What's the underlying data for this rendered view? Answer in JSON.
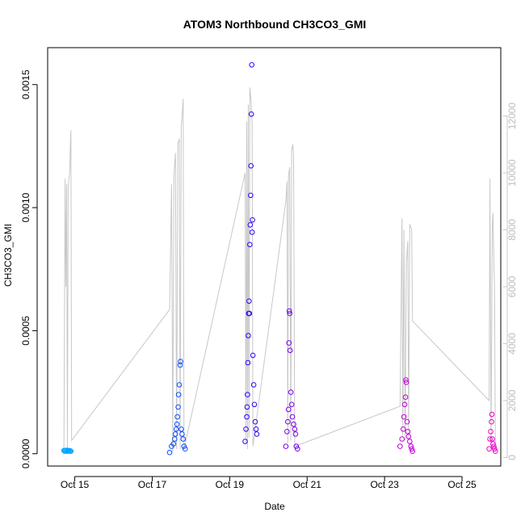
{
  "chart_data": {
    "type": "scatter",
    "title": "ATOM3 Northbound CH3CO3_GMI",
    "xlabel": "Date",
    "ylabel": "CH3CO3_GMI",
    "x_ticks": [
      "Oct 15",
      "Oct 17",
      "Oct 19",
      "Oct 21",
      "Oct 23",
      "Oct 25"
    ],
    "x_tick_days": [
      15,
      17,
      19,
      21,
      23,
      25
    ],
    "xlim_days": [
      14.3,
      26.0
    ],
    "y_ticks": [
      0.0,
      0.0005,
      0.001,
      0.0015
    ],
    "y_tick_labels": [
      "0.0000",
      "0.0005",
      "0.0010",
      "0.0015"
    ],
    "ylim": [
      -5e-05,
      0.00165
    ],
    "y2_ticks": [
      0,
      2000,
      4000,
      6000,
      8000,
      10000,
      12000
    ],
    "y2_tick_labels": [
      "0",
      "2000",
      "4000",
      "6000",
      "8000",
      "10000",
      "12000"
    ],
    "y2lim": [
      -300,
      14400
    ],
    "y2_color": "#c8c8c8",
    "grid": false,
    "altitude_series": {
      "color": "#c8c8c8",
      "points": [
        [
          14.72,
          100
        ],
        [
          14.75,
          9800
        ],
        [
          14.77,
          6000
        ],
        [
          14.79,
          9600
        ],
        [
          14.81,
          300
        ],
        [
          14.83,
          9500
        ],
        [
          14.85,
          9800
        ],
        [
          14.87,
          10000
        ],
        [
          14.89,
          11200
        ],
        [
          14.9,
          11500
        ],
        [
          14.92,
          600
        ],
        [
          17.45,
          5200
        ],
        [
          17.5,
          9600
        ],
        [
          17.53,
          200
        ],
        [
          17.56,
          9900
        ],
        [
          17.6,
          10700
        ],
        [
          17.63,
          300
        ],
        [
          17.66,
          11000
        ],
        [
          17.7,
          11200
        ],
        [
          17.72,
          300
        ],
        [
          17.75,
          11600
        ],
        [
          17.78,
          12200
        ],
        [
          17.8,
          12600
        ],
        [
          17.82,
          300
        ],
        [
          19.4,
          10000
        ],
        [
          19.42,
          500
        ],
        [
          19.44,
          11800
        ],
        [
          19.46,
          300
        ],
        [
          19.48,
          12400
        ],
        [
          19.5,
          700
        ],
        [
          19.52,
          13000
        ],
        [
          19.55,
          12600
        ],
        [
          19.58,
          11700
        ],
        [
          19.6,
          400
        ],
        [
          20.45,
          9000
        ],
        [
          20.48,
          9700
        ],
        [
          20.5,
          500
        ],
        [
          20.52,
          9900
        ],
        [
          20.55,
          10200
        ],
        [
          20.58,
          600
        ],
        [
          20.6,
          10800
        ],
        [
          20.63,
          11000
        ],
        [
          20.65,
          10600
        ],
        [
          20.68,
          500
        ],
        [
          20.7,
          400
        ],
        [
          23.4,
          1800
        ],
        [
          23.45,
          8400
        ],
        [
          23.47,
          700
        ],
        [
          23.5,
          8000
        ],
        [
          23.53,
          600
        ],
        [
          23.56,
          6800
        ],
        [
          23.6,
          7600
        ],
        [
          23.62,
          700
        ],
        [
          23.65,
          8200
        ],
        [
          23.7,
          8000
        ],
        [
          23.72,
          4800
        ],
        [
          25.7,
          2000
        ],
        [
          25.72,
          9800
        ],
        [
          25.75,
          300
        ],
        [
          25.78,
          8200
        ],
        [
          25.8,
          8600
        ],
        [
          25.82,
          7000
        ],
        [
          25.84,
          6000
        ],
        [
          25.86,
          200
        ]
      ]
    },
    "series": [
      {
        "color": "#00a6ff",
        "points": [
          [
            14.72,
            1.3e-05
          ],
          [
            14.74,
            1.1e-05
          ],
          [
            14.76,
            1.2e-05
          ],
          [
            14.78,
            1.4e-05
          ],
          [
            14.8,
            1e-05
          ],
          [
            14.82,
            1.2e-05
          ],
          [
            14.84,
            1.3e-05
          ],
          [
            14.86,
            1.1e-05
          ],
          [
            14.88,
            1.2e-05
          ],
          [
            14.9,
            1e-05
          ]
        ]
      },
      {
        "color": "#0c4dff",
        "points": [
          [
            17.45,
            5e-06
          ],
          [
            17.5,
            3e-05
          ],
          [
            17.55,
            4e-05
          ],
          [
            17.58,
            6e-05
          ],
          [
            17.6,
            8e-05
          ],
          [
            17.62,
            0.0001
          ],
          [
            17.64,
            0.00012
          ],
          [
            17.65,
            0.00015
          ],
          [
            17.67,
            0.00019
          ],
          [
            17.68,
            0.00024
          ],
          [
            17.7,
            0.00028
          ],
          [
            17.72,
            0.00036
          ],
          [
            17.73,
            0.000375
          ],
          [
            17.75,
            0.0001
          ],
          [
            17.77,
            8e-05
          ],
          [
            17.8,
            6e-05
          ],
          [
            17.82,
            3e-05
          ],
          [
            17.85,
            2e-05
          ]
        ]
      },
      {
        "color": "#3300ff",
        "points": [
          [
            19.4,
            5e-05
          ],
          [
            19.42,
            0.0001
          ],
          [
            19.44,
            0.00015
          ],
          [
            19.45,
            0.00019
          ],
          [
            19.46,
            0.00024
          ],
          [
            19.47,
            0.00037
          ],
          [
            19.48,
            0.00048
          ],
          [
            19.49,
            0.00057
          ],
          [
            19.5,
            0.00062
          ],
          [
            19.51,
            0.00057
          ],
          [
            19.52,
            0.00085
          ],
          [
            19.53,
            0.00093
          ],
          [
            19.54,
            0.00105
          ],
          [
            19.55,
            0.00117
          ],
          [
            19.56,
            0.00138
          ],
          [
            19.57,
            0.00158
          ],
          [
            19.58,
            0.0009
          ],
          [
            19.59,
            0.00095
          ],
          [
            19.6,
            0.0004
          ],
          [
            19.62,
            0.00028
          ],
          [
            19.64,
            0.0002
          ],
          [
            19.66,
            0.00013
          ],
          [
            19.68,
            0.0001
          ],
          [
            19.7,
            8e-05
          ]
        ]
      },
      {
        "color": "#7a00e6",
        "points": [
          [
            20.45,
            3e-05
          ],
          [
            20.48,
            9e-05
          ],
          [
            20.5,
            0.00013
          ],
          [
            20.52,
            0.00018
          ],
          [
            20.53,
            0.00045
          ],
          [
            20.54,
            0.00058
          ],
          [
            20.55,
            0.00057
          ],
          [
            20.56,
            0.00042
          ],
          [
            20.58,
            0.00025
          ],
          [
            20.6,
            0.0002
          ],
          [
            20.62,
            0.00015
          ],
          [
            20.65,
            0.00012
          ],
          [
            20.68,
            0.0001
          ],
          [
            20.7,
            8e-05
          ],
          [
            20.72,
            3e-05
          ],
          [
            20.75,
            2e-05
          ]
        ]
      },
      {
        "color": "#c000d9",
        "points": [
          [
            23.4,
            3e-05
          ],
          [
            23.45,
            6e-05
          ],
          [
            23.48,
            0.0001
          ],
          [
            23.5,
            0.00015
          ],
          [
            23.52,
            0.0002
          ],
          [
            23.54,
            0.00023
          ],
          [
            23.55,
            0.0003
          ],
          [
            23.56,
            0.00029
          ],
          [
            23.58,
            0.00013
          ],
          [
            23.6,
            9e-05
          ],
          [
            23.62,
            7e-05
          ],
          [
            23.65,
            5e-05
          ],
          [
            23.68,
            3e-05
          ],
          [
            23.7,
            2e-05
          ],
          [
            23.72,
            1e-05
          ]
        ]
      },
      {
        "color": "#f000c8",
        "points": [
          [
            25.7,
            2e-05
          ],
          [
            25.72,
            6e-05
          ],
          [
            25.74,
            9e-05
          ],
          [
            25.76,
            0.00013
          ],
          [
            25.77,
            0.00016
          ],
          [
            25.78,
            6e-05
          ],
          [
            25.8,
            4e-05
          ],
          [
            25.82,
            3e-05
          ],
          [
            25.84,
            2e-05
          ],
          [
            25.86,
            1e-05
          ]
        ]
      }
    ]
  }
}
